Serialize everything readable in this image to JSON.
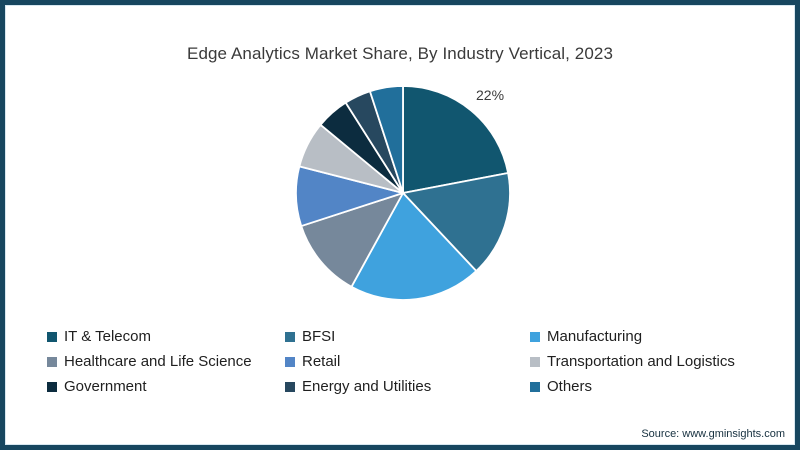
{
  "title": "Edge Analytics Market Share, By Industry Vertical, 2023",
  "source_note": "Source: www.gminsights.com",
  "frame": {
    "border_color": "#17465f",
    "inner_line_color": "#d7e7f0",
    "background": "#ffffff"
  },
  "chart_data": {
    "type": "pie",
    "title": "Edge Analytics Market Share, By Industry Vertical, 2023",
    "direction": "clockwise",
    "start_angle_deg": 0,
    "legend_position": "bottom",
    "data_label": {
      "text": "22%",
      "slice": "IT & Telecom",
      "position": "outside-top-right"
    },
    "slices": [
      {
        "label": "IT & Telecom",
        "value_pct": 22,
        "color": "#11566f"
      },
      {
        "label": "BFSI",
        "value_pct": 16,
        "color": "#2f7191"
      },
      {
        "label": "Manufacturing",
        "value_pct": 20,
        "color": "#3fa2de"
      },
      {
        "label": "Healthcare and Life Science",
        "value_pct": 12,
        "color": "#76889b"
      },
      {
        "label": "Retail",
        "value_pct": 9,
        "color": "#5285c6"
      },
      {
        "label": "Transportation and Logistics",
        "value_pct": 7,
        "color": "#b8bec5"
      },
      {
        "label": "Government",
        "value_pct": 5,
        "color": "#0c2c3f"
      },
      {
        "label": "Energy and Utilities",
        "value_pct": 4,
        "color": "#27485f"
      },
      {
        "label": "Others",
        "value_pct": 5,
        "color": "#216f9b"
      }
    ]
  }
}
